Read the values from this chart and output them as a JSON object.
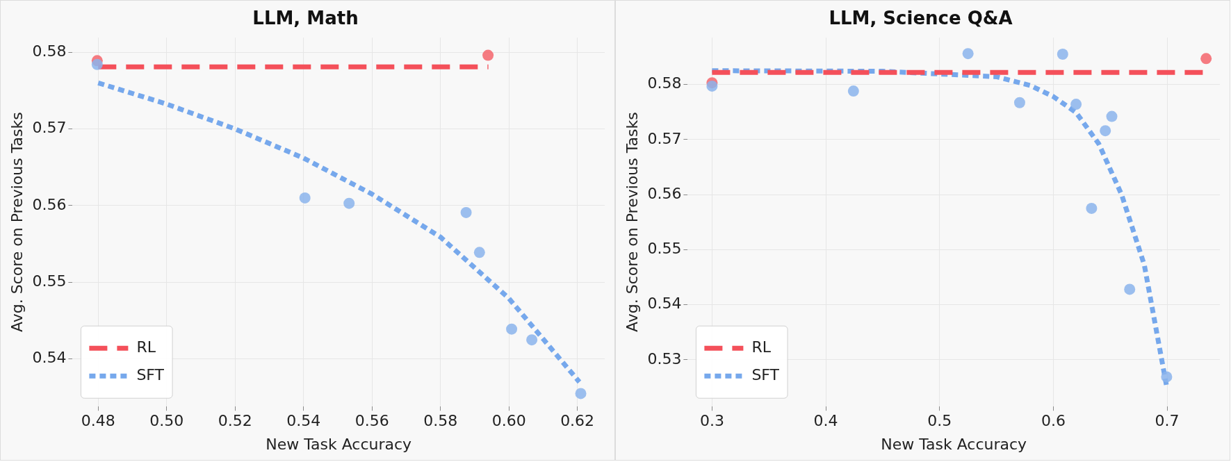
{
  "chart_data": [
    {
      "type": "scatter",
      "title": "LLM, Math",
      "xlabel": "New Task Accuracy",
      "ylabel": "Avg. Score on Previous Tasks",
      "xlim": [
        0.4725,
        0.628
      ],
      "xticks": [
        {
          "value": 0.48,
          "label": "0.48"
        },
        {
          "value": 0.5,
          "label": "0.50"
        },
        {
          "value": 0.52,
          "label": "0.52"
        },
        {
          "value": 0.54,
          "label": "0.54"
        },
        {
          "value": 0.56,
          "label": "0.56"
        },
        {
          "value": 0.58,
          "label": "0.58"
        },
        {
          "value": 0.6,
          "label": "0.60"
        },
        {
          "value": 0.62,
          "label": "0.62"
        }
      ],
      "ylim": [
        0.5338,
        0.5819
      ],
      "yticks": [
        0.54,
        0.55,
        0.56,
        0.57,
        0.58
      ],
      "grid": true,
      "legend": "bottom left",
      "series": [
        {
          "type": "scatter",
          "color": "#f4646c",
          "marker": "circle",
          "x": [
            0.4797,
            0.5939
          ],
          "values": [
            0.5789,
            0.5796
          ]
        },
        {
          "type": "scatter",
          "color": "#8ab4ec",
          "marker": "circle",
          "x": [
            0.4797,
            0.5404,
            0.5533,
            0.5875,
            0.5914,
            0.6008,
            0.6067,
            0.621
          ],
          "values": [
            0.5784,
            0.561,
            0.5603,
            0.5591,
            0.5539,
            0.5439,
            0.5425,
            0.5355
          ]
        },
        {
          "type": "line",
          "name": "RL",
          "color": "#f4505a",
          "marker": "none",
          "line_style": "dashed",
          "x": [
            0.48,
            0.594
          ],
          "values": [
            0.5781,
            0.5781
          ]
        },
        {
          "type": "line",
          "name": "SFT",
          "color": "#76a8ec",
          "marker": "none",
          "line_style": "dotted",
          "x": [
            0.48,
            0.4996,
            0.52,
            0.54,
            0.56,
            0.58,
            0.6,
            0.6206
          ],
          "values": [
            0.576,
            0.5733,
            0.57,
            0.5662,
            0.5615,
            0.5559,
            0.5479,
            0.537
          ]
        }
      ]
    },
    {
      "type": "scatter",
      "title": "LLM, Science Q&A",
      "xlabel": "New Task Accuracy",
      "ylabel": "Avg. Score on Previous Tasks",
      "xlim": [
        0.2786,
        0.7464
      ],
      "xticks": [
        0.3,
        0.4,
        0.5,
        0.6,
        0.7
      ],
      "ylim": [
        0.5215,
        0.5885
      ],
      "yticks": [
        0.53,
        0.54,
        0.55,
        0.56,
        0.57,
        0.58
      ],
      "grid": true,
      "legend": "bottom left",
      "series": [
        {
          "type": "scatter",
          "color": "#f4646c",
          "marker": "circle",
          "x": [
            0.3,
            0.7343
          ],
          "values": [
            0.5803,
            0.5847
          ]
        },
        {
          "type": "scatter",
          "color": "#8ab4ec",
          "marker": "circle",
          "x": [
            0.3,
            0.4243,
            0.525,
            0.5704,
            0.6082,
            0.62,
            0.6336,
            0.6457,
            0.6514,
            0.6671,
            0.6996
          ],
          "values": [
            0.5797,
            0.5788,
            0.5856,
            0.5767,
            0.5855,
            0.5764,
            0.5575,
            0.5716,
            0.5742,
            0.5428,
            0.5269
          ]
        },
        {
          "type": "line",
          "name": "RL",
          "color": "#f4505a",
          "marker": "none",
          "line_style": "dashed",
          "x": [
            0.3,
            0.734
          ],
          "values": [
            0.5822,
            0.5822
          ]
        },
        {
          "type": "line",
          "name": "SFT",
          "color": "#76a8ec",
          "marker": "none",
          "line_style": "dotted",
          "x": [
            0.3,
            0.45,
            0.5,
            0.55,
            0.58,
            0.6,
            0.62,
            0.64,
            0.66,
            0.68,
            0.7
          ],
          "values": [
            0.5825,
            0.5824,
            0.5819,
            0.5814,
            0.5798,
            0.5778,
            0.5749,
            0.5692,
            0.56,
            0.5472,
            0.5247
          ]
        }
      ]
    }
  ]
}
